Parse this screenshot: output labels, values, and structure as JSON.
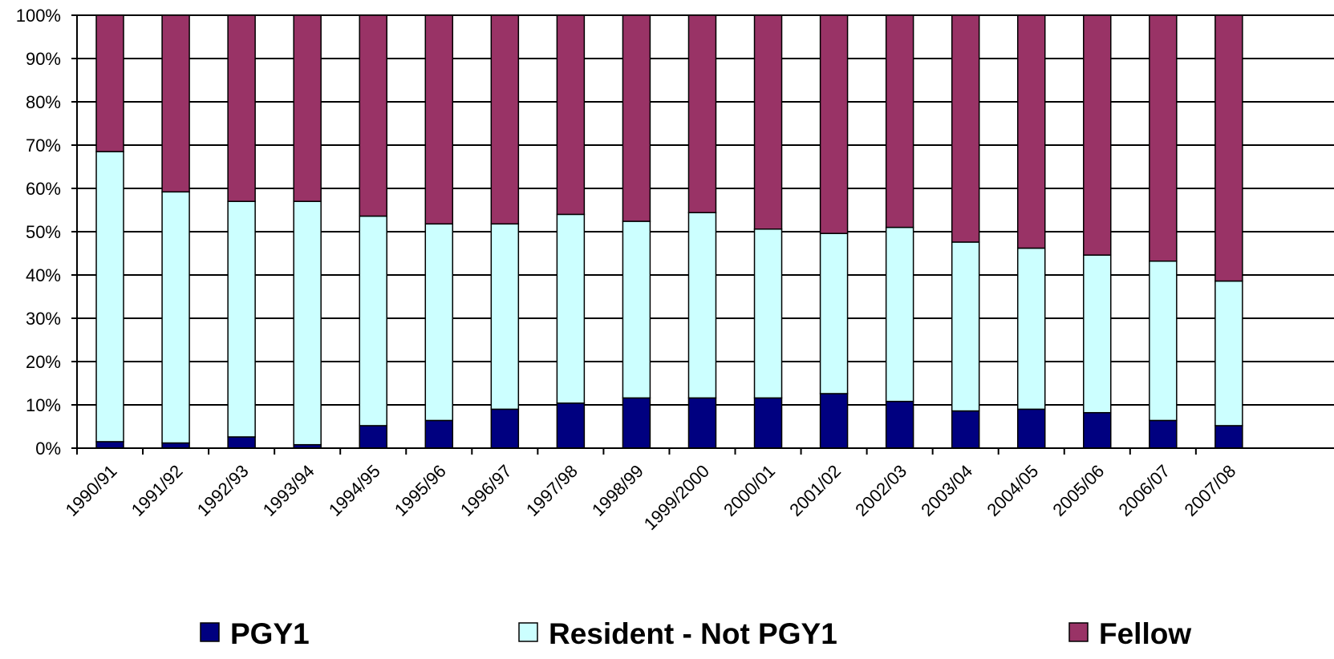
{
  "chart_data": {
    "type": "bar",
    "stacked": true,
    "categories": [
      "1990/91",
      "1991/92",
      "1992/93",
      "1993/94",
      "1994/95",
      "1995/96",
      "1996/97",
      "1997/98",
      "1998/99",
      "1999/2000",
      "2000/01",
      "2001/02",
      "2002/03",
      "2003/04",
      "2004/05",
      "2005/06",
      "2006/07",
      "2007/08"
    ],
    "series": [
      {
        "name": "PGY1",
        "color": "#000080",
        "values": [
          1.5,
          1.2,
          2.6,
          0.8,
          5.2,
          6.4,
          9.0,
          10.4,
          11.6,
          11.6,
          11.6,
          12.6,
          10.8,
          8.6,
          9.0,
          8.2,
          6.4,
          5.2
        ]
      },
      {
        "name": "Resident - Not PGY1",
        "color": "#CCFFFF",
        "values": [
          67.0,
          58.0,
          54.4,
          56.2,
          48.4,
          45.4,
          42.8,
          43.6,
          40.8,
          42.8,
          39.0,
          37.0,
          40.2,
          39.0,
          37.2,
          36.4,
          36.8,
          33.4
        ]
      },
      {
        "name": "Fellow",
        "color": "#993366",
        "values": [
          31.5,
          40.8,
          43.0,
          43.0,
          46.4,
          48.2,
          48.2,
          46.0,
          47.6,
          45.6,
          49.4,
          50.4,
          49.0,
          52.4,
          53.8,
          55.4,
          56.8,
          61.4
        ]
      }
    ],
    "ylim": [
      0,
      100
    ],
    "yticks": [
      "0%",
      "10%",
      "20%",
      "30%",
      "40%",
      "50%",
      "60%",
      "70%",
      "80%",
      "90%",
      "100%"
    ],
    "grid": true,
    "legend_position": "bottom"
  }
}
